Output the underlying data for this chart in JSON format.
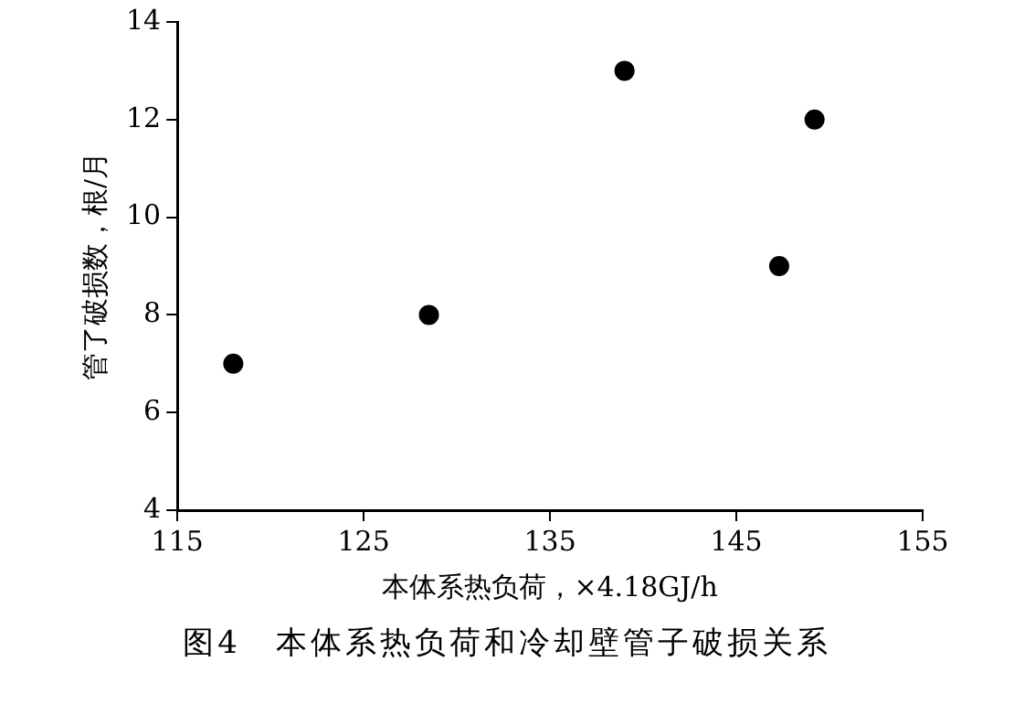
{
  "chart_data": {
    "type": "scatter",
    "xlabel": "本体系热负荷，×4.18GJ/h",
    "ylabel": "管了破损数，根/月",
    "x": [
      118,
      128.5,
      139,
      147.3,
      149.2
    ],
    "values": [
      7,
      8,
      13,
      9,
      12
    ],
    "color": "#000000",
    "marker": "circle",
    "xlim": [
      115,
      155
    ],
    "xticks": [
      115,
      125,
      135,
      145,
      155
    ],
    "ylim": [
      4,
      14
    ],
    "yticks": [
      4,
      6,
      8,
      10,
      12,
      14
    ],
    "grid": false,
    "legend": false,
    "annotations": [
      "图4　本体系热负荷和冷却壁管子破损关系"
    ]
  }
}
